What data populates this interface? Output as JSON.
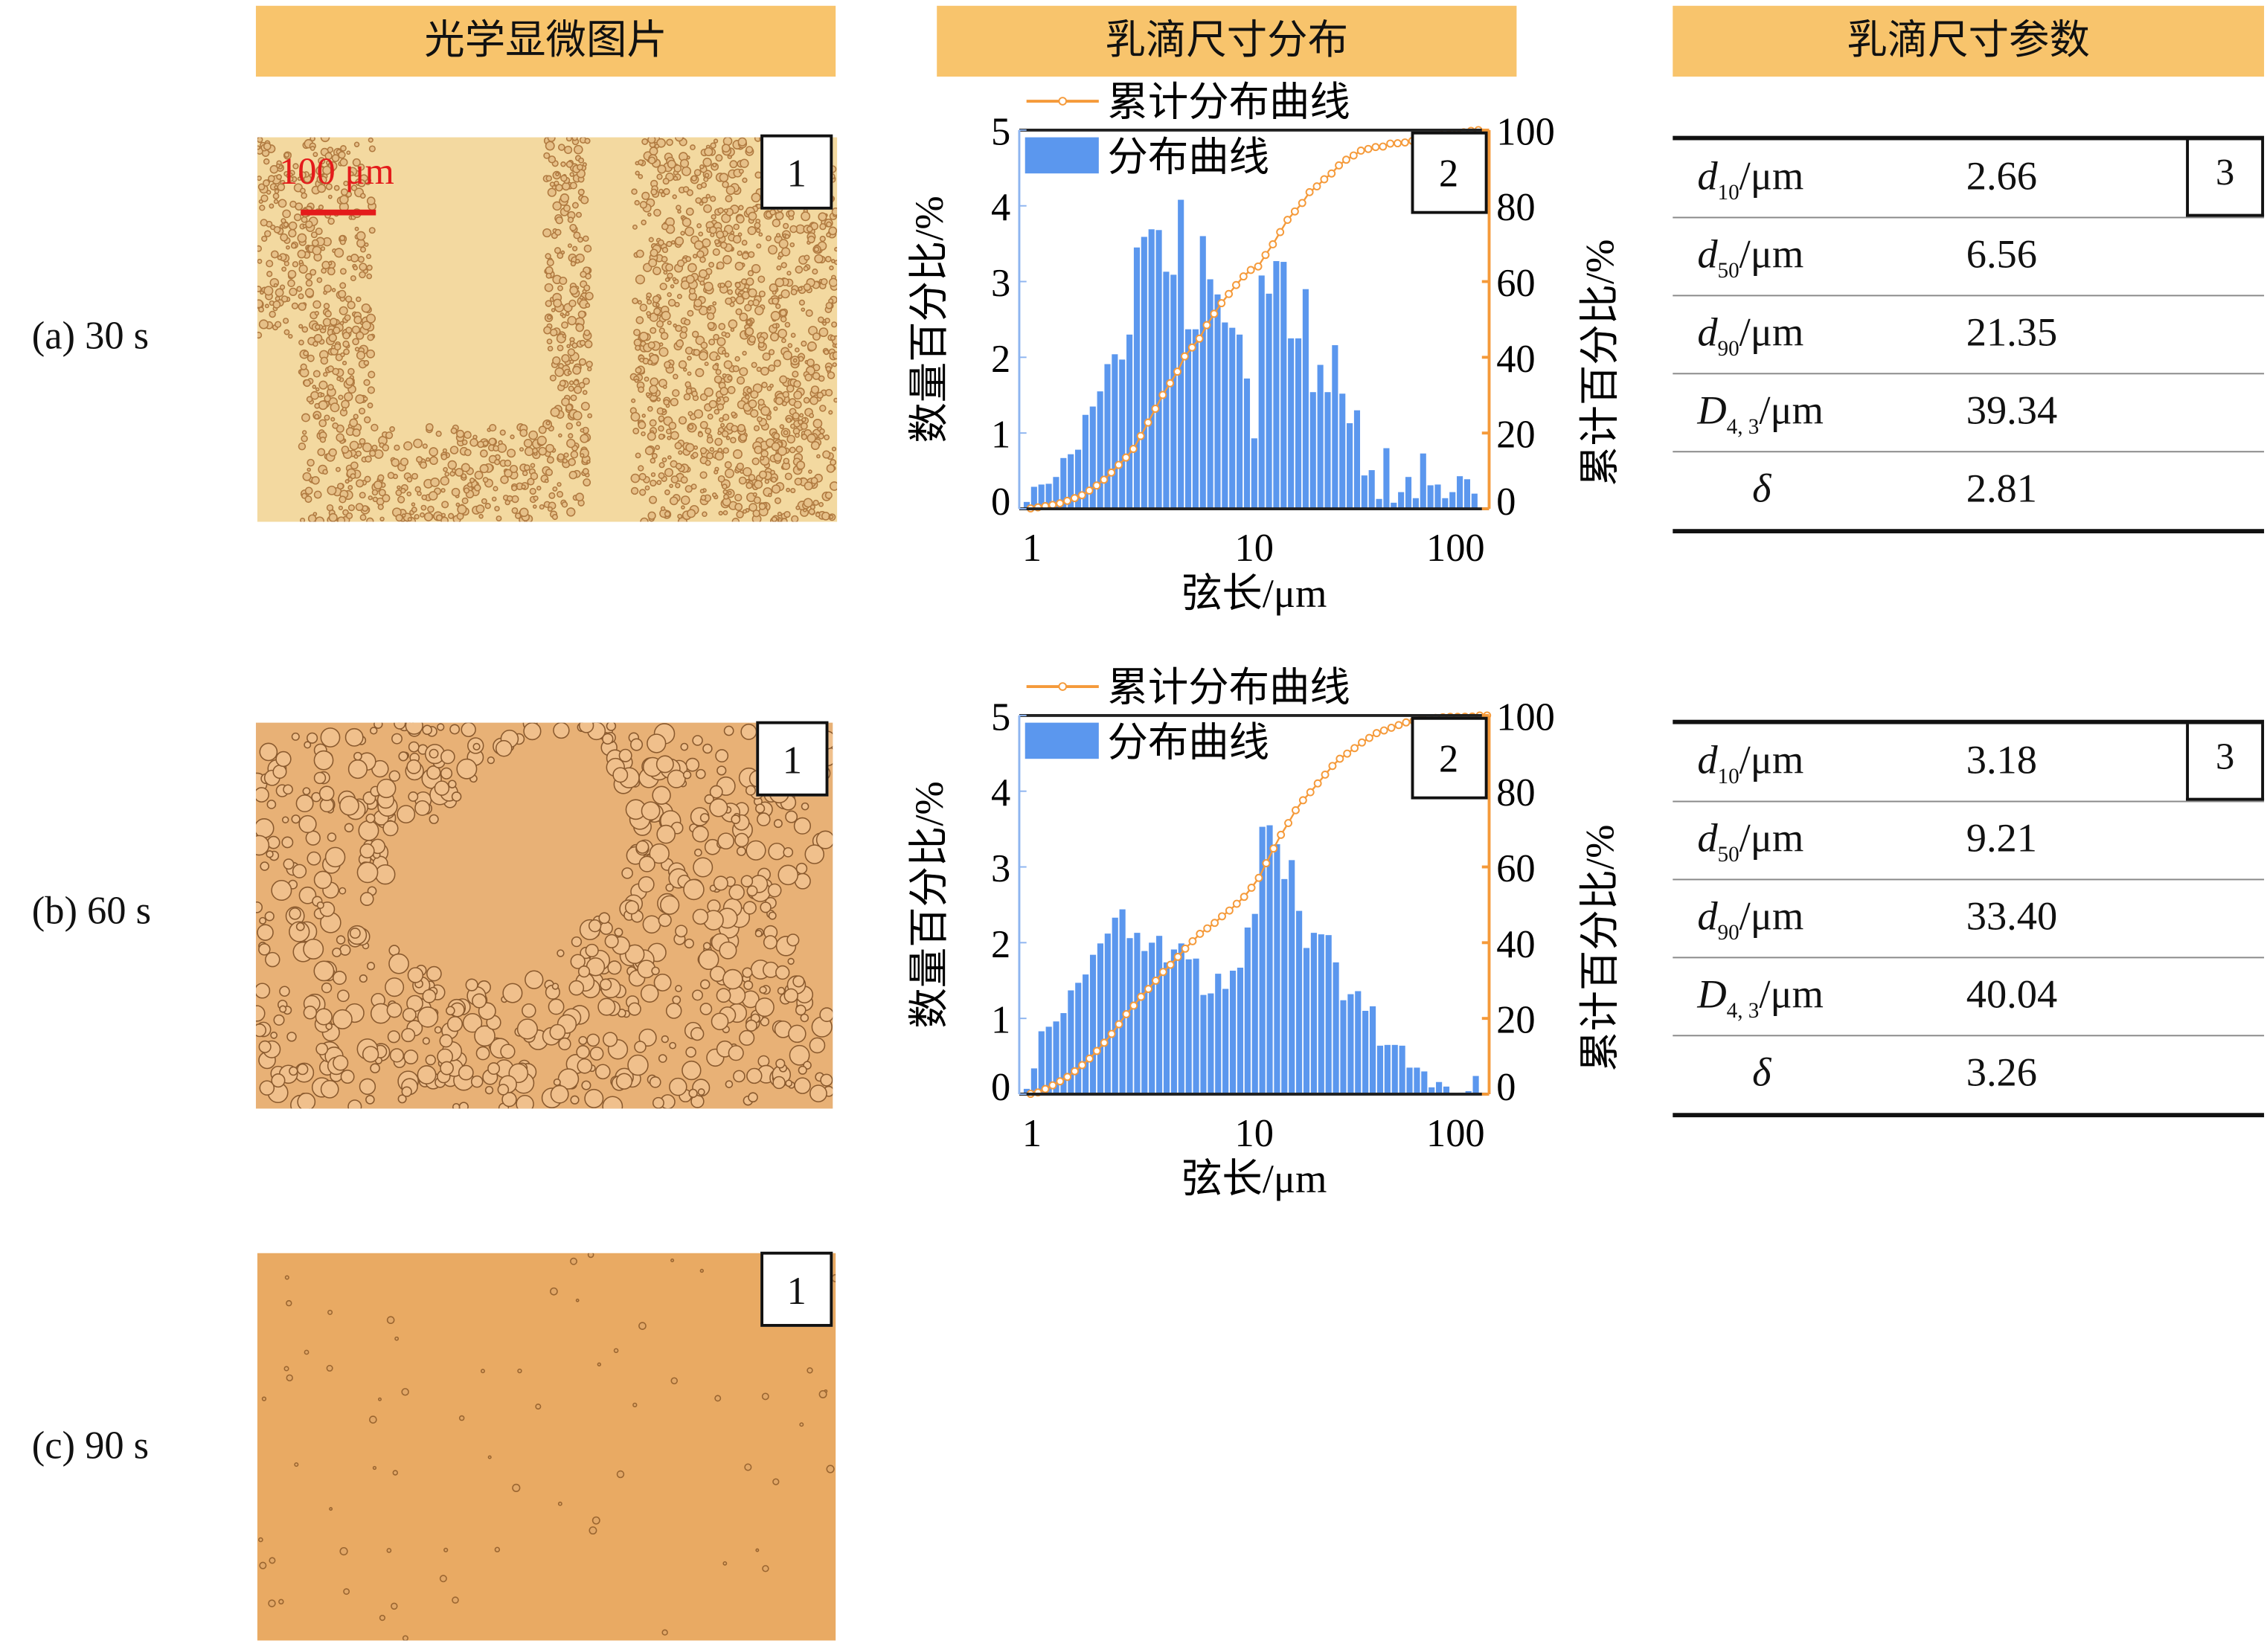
{
  "headers": {
    "micrograph": "光学显微图片",
    "distribution": "乳滴尺寸分布",
    "parameters": "乳滴尺寸参数"
  },
  "rows": [
    {
      "label": "(a) 30 s",
      "scale_label": "100 μm",
      "panel_numbers": [
        "1",
        "2",
        "3"
      ]
    },
    {
      "label": "(b) 60 s",
      "panel_numbers": [
        "1",
        "2",
        "3"
      ]
    },
    {
      "label": "(c) 90 s",
      "panel_numbers": [
        "1"
      ]
    }
  ],
  "tables": [
    {
      "rows": [
        {
          "sym": "d",
          "sub": "10",
          "unit": "/μm",
          "value": "2.66"
        },
        {
          "sym": "d",
          "sub": "50",
          "unit": "/μm",
          "value": "6.56"
        },
        {
          "sym": "d",
          "sub": "90",
          "unit": "/μm",
          "value": "21.35"
        },
        {
          "sym": "D",
          "sub": "4, 3",
          "unit": "/μm",
          "value": "39.34"
        },
        {
          "sym": "δ",
          "sub": "",
          "unit": "",
          "value": "2.81"
        }
      ]
    },
    {
      "rows": [
        {
          "sym": "d",
          "sub": "10",
          "unit": "/μm",
          "value": "3.18"
        },
        {
          "sym": "d",
          "sub": "50",
          "unit": "/μm",
          "value": "9.21"
        },
        {
          "sym": "d",
          "sub": "90",
          "unit": "/μm",
          "value": "33.40"
        },
        {
          "sym": "D",
          "sub": "4, 3",
          "unit": "/μm",
          "value": "40.04"
        },
        {
          "sym": "δ",
          "sub": "",
          "unit": "",
          "value": "3.26"
        }
      ]
    }
  ],
  "colors": {
    "bar": "#5b97ee",
    "cumulative": "#f59a3a",
    "header": "#f8c46c"
  },
  "chart_data": [
    {
      "type": "bar",
      "title": "(a) 30 s",
      "xlabel": "弦长/μm",
      "ylabel": "数量百分比/%",
      "y2label": "累计百分比/%",
      "xscale": "log",
      "xlim": [
        1,
        100
      ],
      "ylim": [
        0,
        5
      ],
      "y2lim": [
        0,
        100
      ],
      "xticks": [
        "1",
        "10",
        "100"
      ],
      "yticks": [
        "0",
        "1",
        "2",
        "3",
        "4",
        "5"
      ],
      "y2ticks": [
        "0",
        "20",
        "40",
        "60",
        "80",
        "100"
      ],
      "legend": [
        "累计分布曲线",
        "分布曲线"
      ],
      "legend_position": "top-left",
      "bin_range": [
        1.04,
        90
      ],
      "values": [
        0.09,
        0.29,
        0.32,
        0.33,
        0.42,
        0.67,
        0.72,
        0.78,
        1.24,
        1.35,
        1.55,
        1.91,
        2.04,
        1.97,
        2.3,
        3.45,
        3.59,
        3.69,
        3.68,
        3.13,
        3.09,
        4.08,
        2.37,
        2.37,
        3.6,
        3.03,
        2.83,
        2.46,
        2.39,
        2.3,
        1.72,
        0.93,
        3.08,
        2.84,
        3.27,
        3.26,
        2.25,
        2.25,
        2.9,
        1.54,
        1.9,
        1.54,
        2.16,
        1.52,
        1.13,
        1.3,
        0.44,
        0.51,
        0.13,
        0.8,
        0.08,
        0.22,
        0.42,
        0.14,
        0.73,
        0.31,
        0.32,
        0.14,
        0.22,
        0.43,
        0.39,
        0.2
      ],
      "series": [
        {
          "name": "分布曲线",
          "kind": "bar"
        },
        {
          "name": "累计分布曲线",
          "kind": "line-cumulative"
        }
      ]
    },
    {
      "type": "bar",
      "title": "(b) 60 s",
      "xlabel": "弦长/μm",
      "ylabel": "数量百分比/%",
      "y2label": "累计百分比/%",
      "xscale": "log",
      "xlim": [
        1,
        100
      ],
      "ylim": [
        0,
        5
      ],
      "y2lim": [
        0,
        100
      ],
      "xticks": [
        "1",
        "10",
        "100"
      ],
      "yticks": [
        "0",
        "1",
        "2",
        "3",
        "4",
        "5"
      ],
      "y2ticks": [
        "0",
        "20",
        "40",
        "60",
        "80",
        "100"
      ],
      "legend": [
        "累计分布曲线",
        "分布曲线"
      ],
      "legend_position": "top-left",
      "bin_range": [
        1.04,
        98
      ],
      "values": [
        0.07,
        0.34,
        0.83,
        0.89,
        0.96,
        1.07,
        1.37,
        1.47,
        1.58,
        1.84,
        1.99,
        2.12,
        2.33,
        2.44,
        2.06,
        2.13,
        1.89,
        2.0,
        2.09,
        1.74,
        1.91,
        1.99,
        1.78,
        1.79,
        1.31,
        1.33,
        1.59,
        1.39,
        1.63,
        1.67,
        2.2,
        2.38,
        3.53,
        3.55,
        3.3,
        2.84,
        3.09,
        2.42,
        1.93,
        2.13,
        2.11,
        2.1,
        1.74,
        1.24,
        1.32,
        1.36,
        1.1,
        1.16,
        0.64,
        0.65,
        0.65,
        0.64,
        0.35,
        0.35,
        0.3,
        0.09,
        0.16,
        0.1,
        0.01,
        0.02,
        0.04,
        0.24,
        0.02
      ],
      "series": [
        {
          "name": "分布曲线",
          "kind": "bar"
        },
        {
          "name": "累计分布曲线",
          "kind": "line-cumulative"
        }
      ]
    }
  ]
}
